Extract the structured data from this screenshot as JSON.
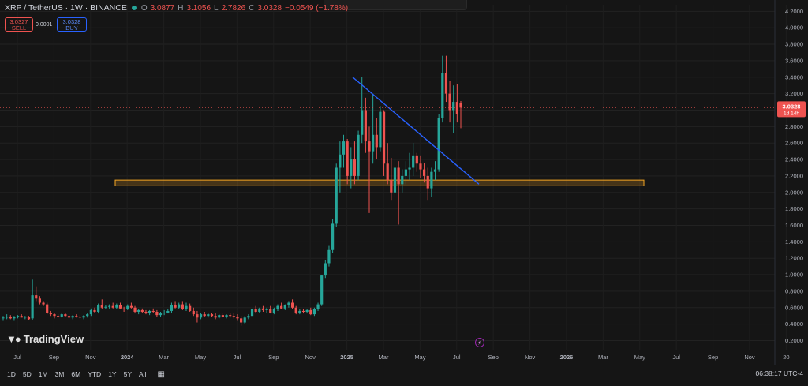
{
  "header": {
    "symbol": "XRP / TetherUS · 1W · BINANCE",
    "o_label": "O",
    "o_value": "3.0877",
    "h_label": "H",
    "h_value": "3.1056",
    "l_label": "L",
    "l_value": "2.7826",
    "c_label": "C",
    "c_value": "3.0328",
    "change": "−0.0549 (−1.78%)"
  },
  "trade": {
    "sell_price": "3.0327",
    "sell_label": "SELL",
    "spread": "0.0001",
    "buy_price": "3.0328",
    "buy_label": "BUY"
  },
  "brand": {
    "name": "TradingView"
  },
  "price_badge": {
    "price": "3.0328",
    "countdown": "1d 14h"
  },
  "bottom_bar": {
    "ranges": [
      "1D",
      "5D",
      "1M",
      "3M",
      "6M",
      "YTD",
      "1Y",
      "5Y",
      "All"
    ],
    "clock": "06:38:17 UTC-4"
  },
  "colors": {
    "up": "#26a69a",
    "down": "#ef5350",
    "trendline": "#2962ff",
    "zone": "#f5a623",
    "background": "#151515"
  },
  "chart_data": {
    "type": "candlestick",
    "interval": "1W",
    "x_tick_labels": [
      "Jul",
      "Sep",
      "Nov",
      "2024",
      "Mar",
      "May",
      "Jul",
      "Sep",
      "Nov",
      "2025",
      "Mar",
      "May",
      "Jul",
      "Sep",
      "Nov",
      "2026",
      "Mar",
      "May",
      "Jul",
      "Sep",
      "Nov",
      "20"
    ],
    "y_tick_labels": [
      "0.2000",
      "0.4000",
      "0.6000",
      "0.8000",
      "1.0000",
      "1.2000",
      "1.4000",
      "1.6000",
      "1.8000",
      "2.0000",
      "2.2000",
      "2.4000",
      "2.6000",
      "2.8000",
      "3.0000",
      "3.2000",
      "3.4000",
      "3.6000",
      "3.8000",
      "4.0000",
      "4.2000"
    ],
    "ylim": [
      0.08,
      4.28
    ],
    "candles": [
      [
        0.47,
        0.5,
        0.44,
        0.48
      ],
      [
        0.48,
        0.52,
        0.46,
        0.49
      ],
      [
        0.49,
        0.51,
        0.46,
        0.47
      ],
      [
        0.47,
        0.5,
        0.44,
        0.49
      ],
      [
        0.49,
        0.51,
        0.47,
        0.5
      ],
      [
        0.5,
        0.52,
        0.48,
        0.48
      ],
      [
        0.48,
        0.5,
        0.46,
        0.49
      ],
      [
        0.49,
        0.5,
        0.45,
        0.46
      ],
      [
        0.47,
        0.94,
        0.45,
        0.75
      ],
      [
        0.75,
        0.86,
        0.68,
        0.71
      ],
      [
        0.71,
        0.74,
        0.64,
        0.66
      ],
      [
        0.66,
        0.68,
        0.62,
        0.64
      ],
      [
        0.64,
        0.66,
        0.52,
        0.54
      ],
      [
        0.54,
        0.56,
        0.5,
        0.52
      ],
      [
        0.52,
        0.54,
        0.47,
        0.5
      ],
      [
        0.5,
        0.52,
        0.48,
        0.49
      ],
      [
        0.49,
        0.53,
        0.48,
        0.52
      ],
      [
        0.52,
        0.54,
        0.49,
        0.5
      ],
      [
        0.5,
        0.52,
        0.47,
        0.48
      ],
      [
        0.48,
        0.51,
        0.46,
        0.5
      ],
      [
        0.5,
        0.52,
        0.48,
        0.49
      ],
      [
        0.49,
        0.51,
        0.47,
        0.48
      ],
      [
        0.48,
        0.51,
        0.46,
        0.5
      ],
      [
        0.5,
        0.53,
        0.48,
        0.52
      ],
      [
        0.52,
        0.59,
        0.5,
        0.57
      ],
      [
        0.57,
        0.6,
        0.54,
        0.55
      ],
      [
        0.55,
        0.65,
        0.53,
        0.63
      ],
      [
        0.63,
        0.7,
        0.58,
        0.6
      ],
      [
        0.6,
        0.63,
        0.58,
        0.61
      ],
      [
        0.61,
        0.64,
        0.59,
        0.62
      ],
      [
        0.62,
        0.66,
        0.59,
        0.6
      ],
      [
        0.6,
        0.65,
        0.58,
        0.63
      ],
      [
        0.63,
        0.66,
        0.58,
        0.59
      ],
      [
        0.59,
        0.61,
        0.55,
        0.58
      ],
      [
        0.58,
        0.64,
        0.57,
        0.62
      ],
      [
        0.62,
        0.66,
        0.59,
        0.6
      ],
      [
        0.6,
        0.62,
        0.53,
        0.55
      ],
      [
        0.55,
        0.58,
        0.52,
        0.57
      ],
      [
        0.57,
        0.59,
        0.54,
        0.55
      ],
      [
        0.55,
        0.57,
        0.52,
        0.54
      ],
      [
        0.54,
        0.57,
        0.51,
        0.56
      ],
      [
        0.56,
        0.59,
        0.54,
        0.55
      ],
      [
        0.55,
        0.57,
        0.49,
        0.51
      ],
      [
        0.51,
        0.55,
        0.49,
        0.53
      ],
      [
        0.53,
        0.57,
        0.51,
        0.54
      ],
      [
        0.54,
        0.58,
        0.53,
        0.56
      ],
      [
        0.56,
        0.66,
        0.54,
        0.63
      ],
      [
        0.63,
        0.68,
        0.59,
        0.6
      ],
      [
        0.6,
        0.66,
        0.58,
        0.64
      ],
      [
        0.64,
        0.68,
        0.57,
        0.58
      ],
      [
        0.58,
        0.66,
        0.56,
        0.62
      ],
      [
        0.62,
        0.65,
        0.55,
        0.56
      ],
      [
        0.56,
        0.6,
        0.5,
        0.52
      ],
      [
        0.52,
        0.56,
        0.42,
        0.48
      ],
      [
        0.48,
        0.54,
        0.46,
        0.52
      ],
      [
        0.52,
        0.55,
        0.49,
        0.5
      ],
      [
        0.5,
        0.53,
        0.48,
        0.52
      ],
      [
        0.52,
        0.54,
        0.49,
        0.5
      ],
      [
        0.5,
        0.53,
        0.46,
        0.48
      ],
      [
        0.48,
        0.52,
        0.47,
        0.51
      ],
      [
        0.51,
        0.54,
        0.48,
        0.49
      ],
      [
        0.49,
        0.52,
        0.47,
        0.51
      ],
      [
        0.51,
        0.53,
        0.48,
        0.5
      ],
      [
        0.5,
        0.53,
        0.47,
        0.49
      ],
      [
        0.49,
        0.52,
        0.44,
        0.47
      ],
      [
        0.47,
        0.5,
        0.38,
        0.42
      ],
      [
        0.42,
        0.5,
        0.4,
        0.48
      ],
      [
        0.48,
        0.52,
        0.46,
        0.5
      ],
      [
        0.5,
        0.6,
        0.48,
        0.58
      ],
      [
        0.58,
        0.62,
        0.53,
        0.55
      ],
      [
        0.55,
        0.6,
        0.54,
        0.59
      ],
      [
        0.59,
        0.62,
        0.55,
        0.57
      ],
      [
        0.57,
        0.6,
        0.54,
        0.58
      ],
      [
        0.58,
        0.62,
        0.53,
        0.54
      ],
      [
        0.54,
        0.6,
        0.52,
        0.58
      ],
      [
        0.58,
        0.64,
        0.56,
        0.62
      ],
      [
        0.62,
        0.66,
        0.58,
        0.59
      ],
      [
        0.59,
        0.64,
        0.57,
        0.63
      ],
      [
        0.63,
        0.68,
        0.6,
        0.66
      ],
      [
        0.66,
        0.7,
        0.58,
        0.6
      ],
      [
        0.6,
        0.62,
        0.52,
        0.54
      ],
      [
        0.54,
        0.58,
        0.52,
        0.56
      ],
      [
        0.56,
        0.58,
        0.53,
        0.55
      ],
      [
        0.55,
        0.58,
        0.53,
        0.57
      ],
      [
        0.57,
        0.6,
        0.51,
        0.52
      ],
      [
        0.52,
        0.6,
        0.5,
        0.58
      ],
      [
        0.58,
        0.66,
        0.56,
        0.64
      ],
      [
        0.64,
        1.0,
        0.62,
        0.99
      ],
      [
        0.99,
        1.18,
        0.96,
        1.14
      ],
      [
        1.14,
        1.35,
        1.1,
        1.3
      ],
      [
        1.3,
        1.68,
        1.26,
        1.62
      ],
      [
        1.62,
        2.35,
        1.58,
        2.3
      ],
      [
        2.3,
        2.62,
        2.0,
        2.46
      ],
      [
        2.46,
        2.7,
        2.3,
        2.62
      ],
      [
        2.62,
        2.65,
        2.1,
        2.2
      ],
      [
        2.2,
        2.55,
        2.05,
        2.4
      ],
      [
        2.4,
        2.62,
        2.1,
        2.2
      ],
      [
        2.2,
        2.75,
        2.15,
        2.7
      ],
      [
        2.7,
        3.4,
        2.6,
        3.0
      ],
      [
        3.0,
        3.15,
        2.48,
        2.62
      ],
      [
        2.62,
        2.8,
        1.75,
        2.5
      ],
      [
        2.5,
        3.2,
        2.35,
        2.7
      ],
      [
        2.7,
        2.9,
        2.4,
        2.55
      ],
      [
        2.55,
        3.05,
        2.5,
        2.98
      ],
      [
        2.98,
        3.0,
        2.2,
        2.35
      ],
      [
        2.35,
        2.6,
        2.1,
        2.15
      ],
      [
        2.15,
        2.42,
        1.9,
        2.0
      ],
      [
        2.0,
        2.4,
        1.95,
        2.3
      ],
      [
        2.3,
        2.38,
        1.61,
        2.1
      ],
      [
        2.1,
        2.28,
        2.0,
        2.2
      ],
      [
        2.2,
        2.38,
        2.1,
        2.28
      ],
      [
        2.28,
        2.48,
        2.15,
        2.3
      ],
      [
        2.3,
        2.6,
        2.2,
        2.45
      ],
      [
        2.45,
        2.48,
        2.25,
        2.35
      ],
      [
        2.35,
        2.45,
        2.18,
        2.28
      ],
      [
        2.28,
        2.36,
        2.12,
        2.2
      ],
      [
        2.2,
        2.3,
        1.9,
        2.05
      ],
      [
        2.05,
        2.3,
        1.95,
        2.25
      ],
      [
        2.25,
        2.38,
        2.15,
        2.28
      ],
      [
        2.28,
        2.95,
        2.25,
        2.9
      ],
      [
        2.9,
        3.66,
        2.85,
        3.45
      ],
      [
        3.45,
        3.66,
        3.1,
        3.2
      ],
      [
        3.2,
        3.35,
        2.85,
        3.0
      ],
      [
        3.0,
        3.3,
        2.72,
        3.1
      ],
      [
        3.1,
        3.32,
        2.85,
        2.95
      ],
      [
        3.09,
        3.11,
        2.78,
        3.03
      ]
    ],
    "overlays": {
      "trendline": [
        [
          447,
          3.4
        ],
        [
          607,
          2.1
        ]
      ],
      "support_zone": {
        "from": 2.08,
        "to": 2.15,
        "x_start": 146,
        "x_end": 816
      }
    }
  }
}
